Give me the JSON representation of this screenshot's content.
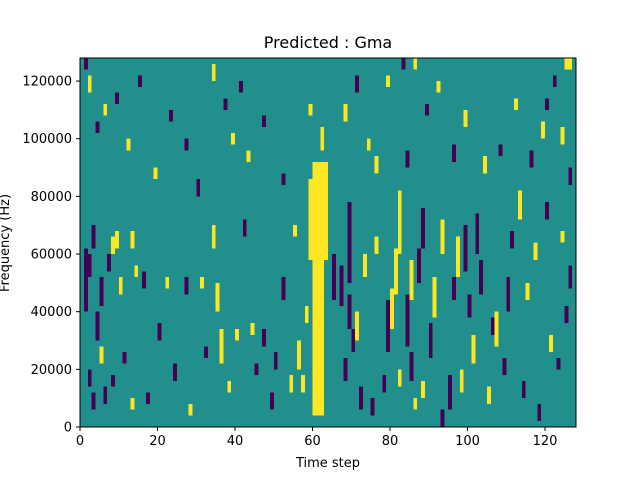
{
  "chart_data": {
    "type": "heatmap",
    "title": "Predicted : Gma",
    "xlabel": "Time step",
    "ylabel": "Frequency (Hz)",
    "xlim": [
      0,
      128
    ],
    "ylim": [
      0,
      128000
    ],
    "x_ticks": [
      0,
      20,
      40,
      60,
      80,
      100,
      120
    ],
    "y_ticks": [
      0,
      20000,
      40000,
      60000,
      80000,
      100000,
      120000
    ],
    "x_tick_labels": [
      "0",
      "20",
      "40",
      "60",
      "80",
      "100",
      "120"
    ],
    "y_tick_labels": [
      "0",
      "20000",
      "40000",
      "60000",
      "80000",
      "100000",
      "120000"
    ],
    "grid": false,
    "background_value": 0,
    "value_colors": {
      "-1": "#440154",
      "0": "#21908d",
      "1": "#fde725"
    },
    "cell_height_hz": 2000,
    "cells": [
      {
        "x": 60,
        "x_end": 64,
        "y": 86000,
        "y_end": 92000,
        "value": 1
      },
      {
        "x": 59,
        "x_end": 64,
        "y": 58000,
        "y_end": 86000,
        "value": 1
      },
      {
        "x": 60,
        "x_end": 63,
        "y": 4000,
        "y_end": 58000,
        "value": 1
      },
      {
        "x": 62,
        "x_end": 63,
        "y": 96000,
        "y_end": 104000,
        "value": 1
      },
      {
        "x": 63,
        "x_end": 64,
        "y": 60000,
        "y_end": 70000,
        "value": 1
      },
      {
        "x": 55,
        "x_end": 56,
        "y": 66000,
        "y_end": 70000,
        "value": 1
      },
      {
        "x": 56,
        "x_end": 57,
        "y": 20000,
        "y_end": 30000,
        "value": 1
      },
      {
        "x": 58,
        "x_end": 59,
        "y": 36000,
        "y_end": 42000,
        "value": 1
      },
      {
        "x": 69,
        "x_end": 70,
        "y": 50000,
        "y_end": 78000,
        "value": -1
      },
      {
        "x": 69,
        "x_end": 70,
        "y": 34000,
        "y_end": 46000,
        "value": -1
      },
      {
        "x": 67,
        "x_end": 68,
        "y": 42000,
        "y_end": 56000,
        "value": -1
      },
      {
        "x": 65,
        "x_end": 66,
        "y": 44000,
        "y_end": 60000,
        "value": -1
      },
      {
        "x": 70,
        "x_end": 71,
        "y": 26000,
        "y_end": 34000,
        "value": -1
      },
      {
        "x": 68,
        "x_end": 69,
        "y": 16000,
        "y_end": 24000,
        "value": -1
      },
      {
        "x": 72,
        "x_end": 73,
        "y": 6000,
        "y_end": 14000,
        "value": -1
      },
      {
        "x": 71,
        "x_end": 72,
        "y": 30000,
        "y_end": 40000,
        "value": 1
      },
      {
        "x": 73,
        "x_end": 74,
        "y": 52000,
        "y_end": 60000,
        "value": 1
      },
      {
        "x": 76,
        "x_end": 77,
        "y": 60000,
        "y_end": 66000,
        "value": 1
      },
      {
        "x": 79,
        "x_end": 80,
        "y": 26000,
        "y_end": 44000,
        "value": -1
      },
      {
        "x": 80,
        "x_end": 81,
        "y": 34000,
        "y_end": 48000,
        "value": 1
      },
      {
        "x": 81,
        "x_end": 82,
        "y": 46000,
        "y_end": 62000,
        "value": 1
      },
      {
        "x": 82,
        "x_end": 83,
        "y": 60000,
        "y_end": 82000,
        "value": 1
      },
      {
        "x": 84,
        "x_end": 85,
        "y": 28000,
        "y_end": 46000,
        "value": -1
      },
      {
        "x": 85,
        "x_end": 86,
        "y": 44000,
        "y_end": 58000,
        "value": 1
      },
      {
        "x": 87,
        "x_end": 88,
        "y": 50000,
        "y_end": 62000,
        "value": -1
      },
      {
        "x": 85,
        "x_end": 86,
        "y": 16000,
        "y_end": 26000,
        "value": -1
      },
      {
        "x": 82,
        "x_end": 83,
        "y": 14000,
        "y_end": 20000,
        "value": 1
      },
      {
        "x": 88,
        "x_end": 89,
        "y": 62000,
        "y_end": 76000,
        "value": -1
      },
      {
        "x": 90,
        "x_end": 91,
        "y": 24000,
        "y_end": 36000,
        "value": -1
      },
      {
        "x": 91,
        "x_end": 92,
        "y": 38000,
        "y_end": 52000,
        "value": 1
      },
      {
        "x": 93,
        "x_end": 94,
        "y": 60000,
        "y_end": 72000,
        "value": 1
      },
      {
        "x": 95,
        "x_end": 96,
        "y": 6000,
        "y_end": 18000,
        "value": -1
      },
      {
        "x": 96,
        "x_end": 97,
        "y": 44000,
        "y_end": 52000,
        "value": -1
      },
      {
        "x": 97,
        "x_end": 98,
        "y": 52000,
        "y_end": 66000,
        "value": 1
      },
      {
        "x": 99,
        "x_end": 100,
        "y": 54000,
        "y_end": 70000,
        "value": -1
      },
      {
        "x": 100,
        "x_end": 101,
        "y": 38000,
        "y_end": 46000,
        "value": -1
      },
      {
        "x": 101,
        "x_end": 102,
        "y": 22000,
        "y_end": 32000,
        "value": 1
      },
      {
        "x": 102,
        "x_end": 103,
        "y": 60000,
        "y_end": 74000,
        "value": -1
      },
      {
        "x": 103,
        "x_end": 104,
        "y": 46000,
        "y_end": 58000,
        "value": -1
      },
      {
        "x": 107,
        "x_end": 108,
        "y": 28000,
        "y_end": 40000,
        "value": 1
      },
      {
        "x": 110,
        "x_end": 111,
        "y": 40000,
        "y_end": 52000,
        "value": -1
      },
      {
        "x": 113,
        "x_end": 114,
        "y": 72000,
        "y_end": 82000,
        "value": 1
      },
      {
        "x": 1,
        "x_end": 2,
        "y": 40000,
        "y_end": 62000,
        "value": -1
      },
      {
        "x": 2,
        "x_end": 3,
        "y": 52000,
        "y_end": 60000,
        "value": -1
      },
      {
        "x": 3,
        "x_end": 4,
        "y": 62000,
        "y_end": 70000,
        "value": -1
      },
      {
        "x": 4,
        "x_end": 5,
        "y": 30000,
        "y_end": 40000,
        "value": -1
      },
      {
        "x": 5,
        "x_end": 6,
        "y": 42000,
        "y_end": 52000,
        "value": -1
      },
      {
        "x": 6,
        "x_end": 7,
        "y": 8000,
        "y_end": 14000,
        "value": -1
      },
      {
        "x": 7,
        "x_end": 8,
        "y": 54000,
        "y_end": 60000,
        "value": -1
      },
      {
        "x": 8,
        "x_end": 9,
        "y": 60000,
        "y_end": 66000,
        "value": 1
      },
      {
        "x": 9,
        "x_end": 10,
        "y": 62000,
        "y_end": 68000,
        "value": 1
      },
      {
        "x": 10,
        "x_end": 11,
        "y": 46000,
        "y_end": 52000,
        "value": 1
      },
      {
        "x": 13,
        "x_end": 14,
        "y": 62000,
        "y_end": 68000,
        "value": 1
      },
      {
        "x": 14,
        "x_end": 15,
        "y": 52000,
        "y_end": 56000,
        "value": 1
      },
      {
        "x": 16,
        "x_end": 17,
        "y": 48000,
        "y_end": 54000,
        "value": -1
      },
      {
        "x": 20,
        "x_end": 21,
        "y": 30000,
        "y_end": 36000,
        "value": -1
      },
      {
        "x": 22,
        "x_end": 23,
        "y": 48000,
        "y_end": 52000,
        "value": 1
      },
      {
        "x": 27,
        "x_end": 28,
        "y": 46000,
        "y_end": 52000,
        "value": -1
      },
      {
        "x": 31,
        "x_end": 32,
        "y": 48000,
        "y_end": 52000,
        "value": 1
      },
      {
        "x": 34,
        "x_end": 35,
        "y": 62000,
        "y_end": 70000,
        "value": 1
      },
      {
        "x": 35,
        "x_end": 36,
        "y": 40000,
        "y_end": 50000,
        "value": 1
      },
      {
        "x": 36,
        "x_end": 37,
        "y": 22000,
        "y_end": 34000,
        "value": 1
      },
      {
        "x": 40,
        "x_end": 41,
        "y": 30000,
        "y_end": 34000,
        "value": 1
      },
      {
        "x": 42,
        "x_end": 43,
        "y": 66000,
        "y_end": 72000,
        "value": -1
      },
      {
        "x": 44,
        "x_end": 45,
        "y": 32000,
        "y_end": 36000,
        "value": 1
      },
      {
        "x": 47,
        "x_end": 48,
        "y": 28000,
        "y_end": 34000,
        "value": -1
      },
      {
        "x": 50,
        "x_end": 51,
        "y": 20000,
        "y_end": 26000,
        "value": -1
      },
      {
        "x": 52,
        "x_end": 53,
        "y": 44000,
        "y_end": 52000,
        "value": -1
      },
      {
        "x": 54,
        "x_end": 55,
        "y": 12000,
        "y_end": 18000,
        "value": 1
      },
      {
        "x": 57,
        "x_end": 58,
        "y": 12000,
        "y_end": 18000,
        "value": 1
      },
      {
        "x": 34,
        "x_end": 35,
        "y": 120000,
        "y_end": 126000,
        "value": 1
      },
      {
        "x": 41,
        "x_end": 42,
        "y": 116000,
        "y_end": 120000,
        "value": -1
      },
      {
        "x": 47,
        "x_end": 48,
        "y": 104000,
        "y_end": 108000,
        "value": -1
      },
      {
        "x": 52,
        "x_end": 53,
        "y": 84000,
        "y_end": 88000,
        "value": -1
      },
      {
        "x": 59,
        "x_end": 60,
        "y": 108000,
        "y_end": 112000,
        "value": 1
      },
      {
        "x": 68,
        "x_end": 69,
        "y": 106000,
        "y_end": 112000,
        "value": 1
      },
      {
        "x": 71,
        "x_end": 72,
        "y": 116000,
        "y_end": 122000,
        "value": -1
      },
      {
        "x": 74,
        "x_end": 75,
        "y": 96000,
        "y_end": 100000,
        "value": 1
      },
      {
        "x": 76,
        "x_end": 77,
        "y": 88000,
        "y_end": 94000,
        "value": 1
      },
      {
        "x": 79,
        "x_end": 80,
        "y": 118000,
        "y_end": 122000,
        "value": 1
      },
      {
        "x": 84,
        "x_end": 85,
        "y": 90000,
        "y_end": 96000,
        "value": -1
      },
      {
        "x": 89,
        "x_end": 90,
        "y": 108000,
        "y_end": 112000,
        "value": -1
      },
      {
        "x": 92,
        "x_end": 93,
        "y": 116000,
        "y_end": 120000,
        "value": 1
      },
      {
        "x": 96,
        "x_end": 97,
        "y": 92000,
        "y_end": 98000,
        "value": -1
      },
      {
        "x": 99,
        "x_end": 100,
        "y": 104000,
        "y_end": 110000,
        "value": 1
      },
      {
        "x": 104,
        "x_end": 105,
        "y": 88000,
        "y_end": 94000,
        "value": 1
      },
      {
        "x": 108,
        "x_end": 109,
        "y": 94000,
        "y_end": 98000,
        "value": -1
      },
      {
        "x": 112,
        "x_end": 113,
        "y": 110000,
        "y_end": 114000,
        "value": 1
      },
      {
        "x": 116,
        "x_end": 117,
        "y": 90000,
        "y_end": 96000,
        "value": -1
      },
      {
        "x": 119,
        "x_end": 120,
        "y": 100000,
        "y_end": 106000,
        "value": 1
      },
      {
        "x": 122,
        "x_end": 123,
        "y": 118000,
        "y_end": 122000,
        "value": -1
      },
      {
        "x": 124,
        "x_end": 125,
        "y": 98000,
        "y_end": 104000,
        "value": 1
      },
      {
        "x": 126,
        "x_end": 127,
        "y": 84000,
        "y_end": 90000,
        "value": -1
      },
      {
        "x": 2,
        "x_end": 3,
        "y": 116000,
        "y_end": 122000,
        "value": 1
      },
      {
        "x": 4,
        "x_end": 5,
        "y": 102000,
        "y_end": 106000,
        "value": -1
      },
      {
        "x": 6,
        "x_end": 7,
        "y": 108000,
        "y_end": 112000,
        "value": 1
      },
      {
        "x": 9,
        "x_end": 10,
        "y": 112000,
        "y_end": 116000,
        "value": -1
      },
      {
        "x": 12,
        "x_end": 13,
        "y": 96000,
        "y_end": 100000,
        "value": 1
      },
      {
        "x": 15,
        "x_end": 16,
        "y": 118000,
        "y_end": 122000,
        "value": -1
      },
      {
        "x": 19,
        "x_end": 20,
        "y": 86000,
        "y_end": 90000,
        "value": 1
      },
      {
        "x": 23,
        "x_end": 24,
        "y": 106000,
        "y_end": 110000,
        "value": -1
      },
      {
        "x": 27,
        "x_end": 28,
        "y": 96000,
        "y_end": 100000,
        "value": -1
      },
      {
        "x": 30,
        "x_end": 31,
        "y": 80000,
        "y_end": 86000,
        "value": -1
      },
      {
        "x": 37,
        "x_end": 38,
        "y": 110000,
        "y_end": 114000,
        "value": -1
      },
      {
        "x": 39,
        "x_end": 40,
        "y": 98000,
        "y_end": 102000,
        "value": 1
      },
      {
        "x": 43,
        "x_end": 44,
        "y": 92000,
        "y_end": 96000,
        "value": 1
      },
      {
        "x": 2,
        "x_end": 3,
        "y": 14000,
        "y_end": 20000,
        "value": -1
      },
      {
        "x": 3,
        "x_end": 4,
        "y": 6000,
        "y_end": 12000,
        "value": -1
      },
      {
        "x": 5,
        "x_end": 6,
        "y": 22000,
        "y_end": 28000,
        "value": 1
      },
      {
        "x": 8,
        "x_end": 9,
        "y": 14000,
        "y_end": 18000,
        "value": -1
      },
      {
        "x": 11,
        "x_end": 12,
        "y": 22000,
        "y_end": 26000,
        "value": -1
      },
      {
        "x": 13,
        "x_end": 14,
        "y": 6000,
        "y_end": 10000,
        "value": 1
      },
      {
        "x": 17,
        "x_end": 18,
        "y": 8000,
        "y_end": 12000,
        "value": -1
      },
      {
        "x": 24,
        "x_end": 25,
        "y": 16000,
        "y_end": 22000,
        "value": -1
      },
      {
        "x": 28,
        "x_end": 29,
        "y": 4000,
        "y_end": 8000,
        "value": 1
      },
      {
        "x": 32,
        "x_end": 33,
        "y": 24000,
        "y_end": 28000,
        "value": -1
      },
      {
        "x": 38,
        "x_end": 39,
        "y": 12000,
        "y_end": 16000,
        "value": 1
      },
      {
        "x": 45,
        "x_end": 46,
        "y": 18000,
        "y_end": 22000,
        "value": -1
      },
      {
        "x": 49,
        "x_end": 50,
        "y": 6000,
        "y_end": 12000,
        "value": -1
      },
      {
        "x": 75,
        "x_end": 76,
        "y": 4000,
        "y_end": 10000,
        "value": -1
      },
      {
        "x": 78,
        "x_end": 79,
        "y": 12000,
        "y_end": 18000,
        "value": -1
      },
      {
        "x": 86,
        "x_end": 87,
        "y": 6000,
        "y_end": 10000,
        "value": 1
      },
      {
        "x": 88,
        "x_end": 89,
        "y": 10000,
        "y_end": 16000,
        "value": 1
      },
      {
        "x": 93,
        "x_end": 94,
        "y": 0,
        "y_end": 6000,
        "value": -1
      },
      {
        "x": 98,
        "x_end": 99,
        "y": 12000,
        "y_end": 20000,
        "value": 1
      },
      {
        "x": 105,
        "x_end": 106,
        "y": 8000,
        "y_end": 14000,
        "value": 1
      },
      {
        "x": 109,
        "x_end": 110,
        "y": 18000,
        "y_end": 24000,
        "value": -1
      },
      {
        "x": 114,
        "x_end": 115,
        "y": 10000,
        "y_end": 16000,
        "value": -1
      },
      {
        "x": 118,
        "x_end": 119,
        "y": 2000,
        "y_end": 8000,
        "value": -1
      },
      {
        "x": 121,
        "x_end": 122,
        "y": 26000,
        "y_end": 32000,
        "value": 1
      },
      {
        "x": 123,
        "x_end": 124,
        "y": 20000,
        "y_end": 24000,
        "value": -1
      },
      {
        "x": 125,
        "x_end": 126,
        "y": 36000,
        "y_end": 42000,
        "value": -1
      },
      {
        "x": 126,
        "x_end": 127,
        "y": 48000,
        "y_end": 56000,
        "value": -1
      },
      {
        "x": 124,
        "x_end": 125,
        "y": 64000,
        "y_end": 68000,
        "value": 1
      },
      {
        "x": 120,
        "x_end": 121,
        "y": 72000,
        "y_end": 78000,
        "value": -1
      },
      {
        "x": 117,
        "x_end": 118,
        "y": 58000,
        "y_end": 64000,
        "value": 1
      },
      {
        "x": 115,
        "x_end": 116,
        "y": 44000,
        "y_end": 50000,
        "value": 1
      },
      {
        "x": 111,
        "x_end": 112,
        "y": 62000,
        "y_end": 68000,
        "value": -1
      },
      {
        "x": 106,
        "x_end": 107,
        "y": 32000,
        "y_end": 38000,
        "value": -1
      },
      {
        "x": 125,
        "x_end": 127,
        "y": 124000,
        "y_end": 128000,
        "value": 1
      },
      {
        "x": 120,
        "x_end": 121,
        "y": 110000,
        "y_end": 114000,
        "value": -1
      },
      {
        "x": 83,
        "x_end": 84,
        "y": 124000,
        "y_end": 128000,
        "value": -1
      },
      {
        "x": 86,
        "x_end": 87,
        "y": 124000,
        "y_end": 128000,
        "value": 1
      },
      {
        "x": 1,
        "x_end": 2,
        "y": 124000,
        "y_end": 128000,
        "value": -1
      }
    ]
  }
}
